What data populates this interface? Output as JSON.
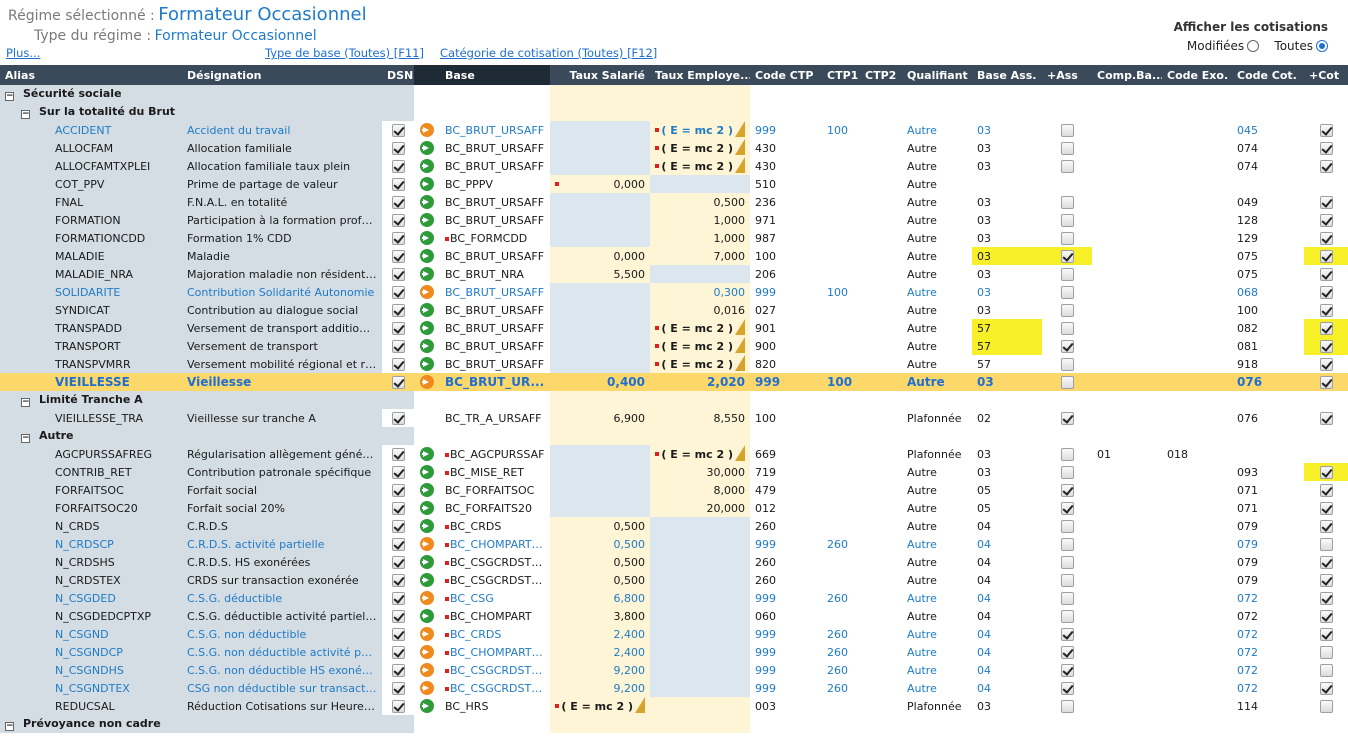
{
  "header": {
    "regime_label": "Régime sélectionné :",
    "regime_value": "Formateur Occasionnel",
    "type_label": "Type du régime :",
    "type_value": "Formateur Occasionnel"
  },
  "links": {
    "plus": "Plus...",
    "type_base": "Type de base (Toutes) [F11]",
    "categorie": "Catégorie de cotisation (Toutes) [F12]"
  },
  "cotisations": {
    "title": "Afficher les cotisations",
    "modifiees": "Modifiées",
    "toutes": "Toutes",
    "selected": "toutes"
  },
  "columns": [
    "Alias",
    "Désignation",
    "DSN",
    "",
    "Base",
    "Taux Salarié",
    "Taux Employe...",
    "Code CTP",
    "CTP1",
    "CTP2",
    "Qualifiant",
    "Base Ass.",
    "+Ass",
    "Comp.Ba...",
    "Code Exo.",
    "Code Cot.",
    "+Cot"
  ],
  "rows": [
    {
      "kind": "group",
      "level": 1,
      "label": "Sécurité sociale"
    },
    {
      "kind": "group",
      "level": 2,
      "label": "Sur la totalité du Brut"
    },
    {
      "alias": "ACCIDENT",
      "des": "Accident du travail",
      "dsn": true,
      "arrow": "orange",
      "baseDot": false,
      "base": "BC_BRUT_URSAFF",
      "sal": "",
      "salDot": false,
      "salY": false,
      "emp": "( E = mc 2 )",
      "empDot": true,
      "empG": false,
      "ctp": "999",
      "ctp1": "100",
      "ctp2": "",
      "qual": "Autre",
      "bass": "03",
      "bassHl": false,
      "ass": false,
      "comp": "",
      "exo": "",
      "cot": "045",
      "pcot": true,
      "pcotHl": false,
      "blue": true
    },
    {
      "alias": "ALLOCFAM",
      "des": "Allocation familiale",
      "dsn": true,
      "arrow": "green",
      "baseDot": false,
      "base": "BC_BRUT_URSAFF",
      "sal": "",
      "salDot": false,
      "salY": false,
      "emp": "( E = mc 2 )",
      "empDot": true,
      "empG": false,
      "ctp": "430",
      "ctp1": "",
      "ctp2": "",
      "qual": "Autre",
      "bass": "03",
      "bassHl": false,
      "ass": false,
      "comp": "",
      "exo": "",
      "cot": "074",
      "pcot": true,
      "pcotHl": false,
      "blue": false
    },
    {
      "alias": "ALLOCFAMTXPLEI",
      "des": "Allocation familiale taux plein",
      "dsn": true,
      "arrow": "green",
      "baseDot": false,
      "base": "BC_BRUT_URSAFF",
      "sal": "",
      "salDot": false,
      "salY": false,
      "emp": "( E = mc 2 )",
      "empDot": true,
      "empG": false,
      "ctp": "430",
      "ctp1": "",
      "ctp2": "",
      "qual": "Autre",
      "bass": "03",
      "bassHl": false,
      "ass": false,
      "comp": "",
      "exo": "",
      "cot": "074",
      "pcot": true,
      "pcotHl": false,
      "blue": false
    },
    {
      "alias": "COT_PPV",
      "des": "Prime de partage de valeur",
      "dsn": true,
      "arrow": "green",
      "baseDot": false,
      "base": "BC_PPPV",
      "sal": "0,000",
      "salDot": true,
      "salY": true,
      "emp": "",
      "empDot": false,
      "empG": true,
      "ctp": "510",
      "ctp1": "",
      "ctp2": "",
      "qual": "Autre",
      "bass": "",
      "bassHl": false,
      "ass": null,
      "comp": "",
      "exo": "",
      "cot": "",
      "pcot": null,
      "pcotHl": false,
      "blue": false
    },
    {
      "alias": "FNAL",
      "des": "F.N.A.L. en totalité",
      "dsn": true,
      "arrow": "green",
      "baseDot": false,
      "base": "BC_BRUT_URSAFF",
      "sal": "",
      "salDot": false,
      "salY": false,
      "emp": "0,500",
      "empDot": false,
      "empG": false,
      "ctp": "236",
      "ctp1": "",
      "ctp2": "",
      "qual": "Autre",
      "bass": "03",
      "bassHl": false,
      "ass": false,
      "comp": "",
      "exo": "",
      "cot": "049",
      "pcot": true,
      "pcotHl": false,
      "blue": false
    },
    {
      "alias": "FORMATION",
      "des": "Participation à la formation profession...",
      "dsn": true,
      "arrow": "green",
      "baseDot": false,
      "base": "BC_BRUT_URSAFF",
      "sal": "",
      "salDot": false,
      "salY": false,
      "emp": "1,000",
      "empDot": false,
      "empG": false,
      "ctp": "971",
      "ctp1": "",
      "ctp2": "",
      "qual": "Autre",
      "bass": "03",
      "bassHl": false,
      "ass": false,
      "comp": "",
      "exo": "",
      "cot": "128",
      "pcot": true,
      "pcotHl": false,
      "blue": false
    },
    {
      "alias": "FORMATIONCDD",
      "des": "Formation 1% CDD",
      "dsn": true,
      "arrow": "green",
      "baseDot": true,
      "base": "BC_FORMCDD",
      "sal": "",
      "salDot": false,
      "salY": false,
      "emp": "1,000",
      "empDot": false,
      "empG": false,
      "ctp": "987",
      "ctp1": "",
      "ctp2": "",
      "qual": "Autre",
      "bass": "03",
      "bassHl": false,
      "ass": false,
      "comp": "",
      "exo": "",
      "cot": "129",
      "pcot": true,
      "pcotHl": false,
      "blue": false
    },
    {
      "alias": "MALADIE",
      "des": "Maladie",
      "dsn": true,
      "arrow": "green",
      "baseDot": false,
      "base": "BC_BRUT_URSAFF",
      "sal": "0,000",
      "salDot": false,
      "salY": true,
      "emp": "7,000",
      "empDot": false,
      "empG": false,
      "ctp": "100",
      "ctp1": "",
      "ctp2": "",
      "qual": "Autre",
      "bass": "03",
      "bassHl": true,
      "ass": true,
      "assHl": true,
      "comp": "",
      "exo": "",
      "cot": "075",
      "pcot": true,
      "pcotHl": true,
      "blue": false
    },
    {
      "alias": "MALADIE_NRA",
      "des": "Majoration maladie non résidents actif",
      "dsn": true,
      "arrow": "green",
      "baseDot": false,
      "base": "BC_BRUT_NRA",
      "sal": "5,500",
      "salDot": false,
      "salY": true,
      "emp": "",
      "empDot": false,
      "empG": true,
      "ctp": "206",
      "ctp1": "",
      "ctp2": "",
      "qual": "Autre",
      "bass": "03",
      "bassHl": false,
      "ass": false,
      "comp": "",
      "exo": "",
      "cot": "075",
      "pcot": true,
      "pcotHl": false,
      "blue": false
    },
    {
      "alias": "SOLIDARITE",
      "des": "Contribution Solidarité Autonomie",
      "dsn": true,
      "arrow": "orange",
      "baseDot": false,
      "base": "BC_BRUT_URSAFF",
      "sal": "",
      "salDot": false,
      "salY": false,
      "emp": "0,300",
      "empDot": false,
      "empG": false,
      "ctp": "999",
      "ctp1": "100",
      "ctp2": "",
      "qual": "Autre",
      "bass": "03",
      "bassHl": false,
      "ass": false,
      "comp": "",
      "exo": "",
      "cot": "068",
      "pcot": true,
      "pcotHl": false,
      "blue": true
    },
    {
      "alias": "SYNDICAT",
      "des": "Contribution au dialogue social",
      "dsn": true,
      "arrow": "green",
      "baseDot": false,
      "base": "BC_BRUT_URSAFF",
      "sal": "",
      "salDot": false,
      "salY": false,
      "emp": "0,016",
      "empDot": false,
      "empG": false,
      "ctp": "027",
      "ctp1": "",
      "ctp2": "",
      "qual": "Autre",
      "bass": "03",
      "bassHl": false,
      "ass": false,
      "comp": "",
      "exo": "",
      "cot": "100",
      "pcot": true,
      "pcotHl": false,
      "blue": false
    },
    {
      "alias": "TRANSPADD",
      "des": "Versement de transport additionnel",
      "dsn": true,
      "arrow": "green",
      "baseDot": false,
      "base": "BC_BRUT_URSAFF",
      "sal": "",
      "salDot": false,
      "salY": false,
      "emp": "( E = mc 2 )",
      "empDot": true,
      "empG": false,
      "ctp": "901",
      "ctp1": "",
      "ctp2": "",
      "qual": "Autre",
      "bass": "57",
      "bassHl": true,
      "ass": false,
      "comp": "",
      "exo": "",
      "cot": "082",
      "pcot": true,
      "pcotHl": true,
      "blue": false
    },
    {
      "alias": "TRANSPORT",
      "des": "Versement de transport",
      "dsn": true,
      "arrow": "green",
      "baseDot": false,
      "base": "BC_BRUT_URSAFF",
      "sal": "",
      "salDot": false,
      "salY": false,
      "emp": "( E = mc 2 )",
      "empDot": true,
      "empG": false,
      "ctp": "900",
      "ctp1": "",
      "ctp2": "",
      "qual": "Autre",
      "bass": "57",
      "bassHl": true,
      "ass": true,
      "comp": "",
      "exo": "",
      "cot": "081",
      "pcot": true,
      "pcotHl": true,
      "blue": false
    },
    {
      "alias": "TRANSPVMRR",
      "des": "Versement mobilité régional et rural",
      "dsn": true,
      "arrow": "green",
      "baseDot": false,
      "base": "BC_BRUT_URSAFF",
      "sal": "",
      "salDot": false,
      "salY": false,
      "emp": "( E = mc 2 )",
      "empDot": true,
      "empG": false,
      "ctp": "820",
      "ctp1": "",
      "ctp2": "",
      "qual": "Autre",
      "bass": "57",
      "bassHl": false,
      "ass": false,
      "comp": "",
      "exo": "",
      "cot": "918",
      "pcot": true,
      "pcotHl": false,
      "blue": false
    },
    {
      "alias": "VIEILLESSE",
      "des": "Vieillesse",
      "dsn": true,
      "arrow": "orange",
      "baseDot": false,
      "base": "BC_BRUT_UR...",
      "sal": "0,400",
      "salDot": false,
      "salY": true,
      "emp": "2,020",
      "empDot": false,
      "empG": false,
      "ctp": "999",
      "ctp1": "100",
      "ctp2": "",
      "qual": "Autre",
      "bass": "03",
      "bassHl": false,
      "ass": false,
      "comp": "",
      "exo": "",
      "cot": "076",
      "pcot": true,
      "pcotHl": false,
      "blue": true,
      "selected": true
    },
    {
      "kind": "group",
      "level": 2,
      "label": "Limité Tranche A"
    },
    {
      "alias": "VIEILLESSE_TRA",
      "des": "Vieillesse sur tranche A",
      "dsn": true,
      "arrow": "",
      "baseDot": false,
      "base": "BC_TR_A_URSAFF",
      "sal": "6,900",
      "salDot": false,
      "salY": true,
      "emp": "8,550",
      "empDot": false,
      "empG": false,
      "ctp": "100",
      "ctp1": "",
      "ctp2": "",
      "qual": "Plafonnée",
      "bass": "02",
      "bassHl": false,
      "ass": true,
      "comp": "",
      "exo": "",
      "cot": "076",
      "pcot": true,
      "pcotHl": false,
      "blue": false
    },
    {
      "kind": "group",
      "level": 2,
      "label": "Autre"
    },
    {
      "alias": "AGCPURSSAFREG",
      "des": "Régularisation allègement général de ...",
      "dsn": true,
      "arrow": "green",
      "baseDot": true,
      "base": "BC_AGCPURSSAF",
      "sal": "",
      "salDot": false,
      "salY": false,
      "emp": "( E = mc 2 )",
      "empDot": true,
      "empG": false,
      "ctp": "669",
      "ctp1": "",
      "ctp2": "",
      "qual": "Plafonnée",
      "bass": "03",
      "bassHl": false,
      "ass": false,
      "comp": "01",
      "exo": "018",
      "cot": "",
      "pcot": null,
      "pcotHl": false,
      "blue": false
    },
    {
      "alias": "CONTRIB_RET",
      "des": "Contribution patronale spécifique",
      "dsn": true,
      "arrow": "green",
      "baseDot": true,
      "base": "BC_MISE_RET",
      "sal": "",
      "salDot": false,
      "salY": false,
      "emp": "30,000",
      "empDot": false,
      "empG": false,
      "ctp": "719",
      "ctp1": "",
      "ctp2": "",
      "qual": "Autre",
      "bass": "03",
      "bassHl": false,
      "ass": false,
      "comp": "",
      "exo": "",
      "cot": "093",
      "pcot": true,
      "pcotHl": true,
      "blue": false
    },
    {
      "alias": "FORFAITSOC",
      "des": "Forfait social",
      "dsn": true,
      "arrow": "green",
      "baseDot": false,
      "base": "BC_FORFAITSOC",
      "sal": "",
      "salDot": false,
      "salY": false,
      "emp": "8,000",
      "empDot": false,
      "empG": false,
      "ctp": "479",
      "ctp1": "",
      "ctp2": "",
      "qual": "Autre",
      "bass": "05",
      "bassHl": false,
      "ass": true,
      "comp": "",
      "exo": "",
      "cot": "071",
      "pcot": true,
      "pcotHl": false,
      "blue": false
    },
    {
      "alias": "FORFAITSOC20",
      "des": "Forfait social 20%",
      "dsn": true,
      "arrow": "green",
      "baseDot": false,
      "base": "BC_FORFAITS20",
      "sal": "",
      "salDot": false,
      "salY": false,
      "emp": "20,000",
      "empDot": false,
      "empG": false,
      "ctp": "012",
      "ctp1": "",
      "ctp2": "",
      "qual": "Autre",
      "bass": "05",
      "bassHl": false,
      "ass": true,
      "comp": "",
      "exo": "",
      "cot": "071",
      "pcot": true,
      "pcotHl": false,
      "blue": false
    },
    {
      "alias": "N_CRDS",
      "des": "C.R.D.S",
      "dsn": true,
      "arrow": "green",
      "baseDot": true,
      "base": "BC_CRDS",
      "sal": "0,500",
      "salDot": false,
      "salY": true,
      "emp": "",
      "empDot": false,
      "empG": true,
      "ctp": "260",
      "ctp1": "",
      "ctp2": "",
      "qual": "Autre",
      "bass": "04",
      "bassHl": false,
      "ass": false,
      "comp": "",
      "exo": "",
      "cot": "079",
      "pcot": true,
      "pcotHl": false,
      "blue": false
    },
    {
      "alias": "N_CRDSCP",
      "des": "C.R.D.S. activité partielle",
      "dsn": true,
      "arrow": "orange",
      "baseDot": true,
      "base": "BC_CHOMPARTND",
      "sal": "0,500",
      "salDot": false,
      "salY": true,
      "emp": "",
      "empDot": false,
      "empG": true,
      "ctp": "999",
      "ctp1": "260",
      "ctp2": "",
      "qual": "Autre",
      "bass": "04",
      "bassHl": false,
      "ass": false,
      "comp": "",
      "exo": "",
      "cot": "079",
      "pcot": false,
      "pcotHl": false,
      "blue": true
    },
    {
      "alias": "N_CRDSHS",
      "des": "C.R.D.S. HS exonérées",
      "dsn": true,
      "arrow": "green",
      "baseDot": true,
      "base": "BC_CSGCRDSTE...",
      "sal": "0,500",
      "salDot": false,
      "salY": true,
      "emp": "",
      "empDot": false,
      "empG": true,
      "ctp": "260",
      "ctp1": "",
      "ctp2": "",
      "qual": "Autre",
      "bass": "04",
      "bassHl": false,
      "ass": false,
      "comp": "",
      "exo": "",
      "cot": "079",
      "pcot": true,
      "pcotHl": false,
      "blue": false
    },
    {
      "alias": "N_CRDSTEX",
      "des": "CRDS sur transaction exonérée",
      "dsn": true,
      "arrow": "green",
      "baseDot": true,
      "base": "BC_CSGCRDSTE...",
      "sal": "0,500",
      "salDot": false,
      "salY": true,
      "emp": "",
      "empDot": false,
      "empG": true,
      "ctp": "260",
      "ctp1": "",
      "ctp2": "",
      "qual": "Autre",
      "bass": "04",
      "bassHl": false,
      "ass": false,
      "comp": "",
      "exo": "",
      "cot": "079",
      "pcot": true,
      "pcotHl": false,
      "blue": false
    },
    {
      "alias": "N_CSGDED",
      "des": "C.S.G. déductible",
      "dsn": true,
      "arrow": "orange",
      "baseDot": true,
      "base": "BC_CSG",
      "sal": "6,800",
      "salDot": false,
      "salY": true,
      "emp": "",
      "empDot": false,
      "empG": true,
      "ctp": "999",
      "ctp1": "260",
      "ctp2": "",
      "qual": "Autre",
      "bass": "04",
      "bassHl": false,
      "ass": false,
      "comp": "",
      "exo": "",
      "cot": "072",
      "pcot": true,
      "pcotHl": false,
      "blue": true
    },
    {
      "alias": "N_CSGDEDCPTXP",
      "des": "C.S.G. déductible activité partielle tau...",
      "dsn": true,
      "arrow": "green",
      "baseDot": true,
      "base": "BC_CHOMPART",
      "sal": "3,800",
      "salDot": false,
      "salY": true,
      "emp": "",
      "empDot": false,
      "empG": true,
      "ctp": "060",
      "ctp1": "",
      "ctp2": "",
      "qual": "Autre",
      "bass": "04",
      "bassHl": false,
      "ass": false,
      "comp": "",
      "exo": "",
      "cot": "072",
      "pcot": true,
      "pcotHl": false,
      "blue": false
    },
    {
      "alias": "N_CSGND",
      "des": "C.S.G. non déductible",
      "dsn": true,
      "arrow": "orange",
      "baseDot": true,
      "base": "BC_CRDS",
      "sal": "2,400",
      "salDot": false,
      "salY": true,
      "emp": "",
      "empDot": false,
      "empG": true,
      "ctp": "999",
      "ctp1": "260",
      "ctp2": "",
      "qual": "Autre",
      "bass": "04",
      "bassHl": false,
      "ass": true,
      "comp": "",
      "exo": "",
      "cot": "072",
      "pcot": true,
      "pcotHl": false,
      "blue": true
    },
    {
      "alias": "N_CSGNDCP",
      "des": "C.S.G. non déductible activité partielle",
      "dsn": true,
      "arrow": "orange",
      "baseDot": true,
      "base": "BC_CHOMPARTND",
      "sal": "2,400",
      "salDot": false,
      "salY": true,
      "emp": "",
      "empDot": false,
      "empG": true,
      "ctp": "999",
      "ctp1": "260",
      "ctp2": "",
      "qual": "Autre",
      "bass": "04",
      "bassHl": false,
      "ass": true,
      "comp": "",
      "exo": "",
      "cot": "072",
      "pcot": false,
      "pcotHl": false,
      "blue": true
    },
    {
      "alias": "N_CSGNDHS",
      "des": "C.S.G. non déductible HS exonérées",
      "dsn": true,
      "arrow": "orange",
      "baseDot": true,
      "base": "BC_CSGCRDSTE...",
      "sal": "9,200",
      "salDot": false,
      "salY": true,
      "emp": "",
      "empDot": false,
      "empG": true,
      "ctp": "999",
      "ctp1": "260",
      "ctp2": "",
      "qual": "Autre",
      "bass": "04",
      "bassHl": false,
      "ass": true,
      "comp": "",
      "exo": "",
      "cot": "072",
      "pcot": false,
      "pcotHl": false,
      "blue": true
    },
    {
      "alias": "N_CSGNDTEX",
      "des": "CSG non déductible sur transaction e...",
      "dsn": true,
      "arrow": "orange",
      "baseDot": true,
      "base": "BC_CSGCRDSTE...",
      "sal": "9,200",
      "salDot": false,
      "salY": true,
      "emp": "",
      "empDot": false,
      "empG": true,
      "ctp": "999",
      "ctp1": "260",
      "ctp2": "",
      "qual": "Autre",
      "bass": "04",
      "bassHl": false,
      "ass": true,
      "comp": "",
      "exo": "",
      "cot": "072",
      "pcot": true,
      "pcotHl": false,
      "blue": true
    },
    {
      "alias": "REDUCSAL",
      "des": "Réduction Cotisations sur Heures Co...",
      "dsn": true,
      "arrow": "green",
      "baseDot": false,
      "base": "BC_HRS",
      "sal": "( E = mc 2 )",
      "salDot": true,
      "salY": true,
      "salFormula": true,
      "emp": "",
      "empDot": false,
      "empG": false,
      "ctp": "003",
      "ctp1": "",
      "ctp2": "",
      "qual": "Plafonnée",
      "bass": "03",
      "bassHl": false,
      "ass": false,
      "comp": "",
      "exo": "",
      "cot": "114",
      "pcot": false,
      "pcotHl": false,
      "blue": false
    },
    {
      "kind": "group",
      "level": 1,
      "label": "Prévoyance non cadre"
    }
  ]
}
